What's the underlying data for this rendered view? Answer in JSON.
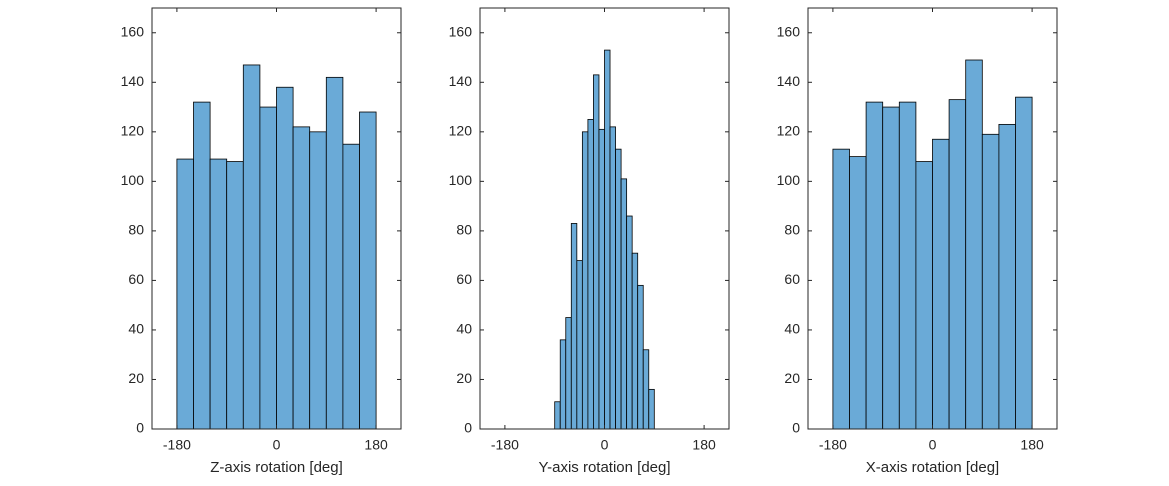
{
  "chart_data": [
    {
      "type": "histogram",
      "xlabel": "Z-axis rotation [deg]",
      "color": "#6aaad7",
      "bins": [
        -180,
        -150,
        -120,
        -90,
        -60,
        -30,
        0,
        30,
        60,
        90,
        120,
        150,
        180
      ],
      "values": [
        109,
        132,
        109,
        108,
        147,
        130,
        138,
        122,
        120,
        142,
        115,
        128
      ],
      "xlim": [
        -225,
        225
      ],
      "ylim": [
        0,
        170
      ],
      "xticks": [
        -180,
        0,
        180
      ],
      "yticks": [
        0,
        20,
        40,
        60,
        80,
        100,
        120,
        140,
        160
      ]
    },
    {
      "type": "histogram",
      "xlabel": "Y-axis rotation [deg]",
      "color": "#6aaad7",
      "bins": [
        -90,
        -80,
        -70,
        -60,
        -50,
        -40,
        -30,
        -20,
        -10,
        0,
        10,
        20,
        30,
        40,
        50,
        60,
        70,
        80,
        90
      ],
      "values": [
        11,
        36,
        45,
        83,
        68,
        120,
        125,
        143,
        121,
        153,
        122,
        113,
        101,
        86,
        71,
        58,
        32,
        16
      ],
      "xlim": [
        -225,
        225
      ],
      "ylim": [
        0,
        170
      ],
      "xticks": [
        -180,
        0,
        180
      ],
      "yticks": [
        0,
        20,
        40,
        60,
        80,
        100,
        120,
        140,
        160
      ]
    },
    {
      "type": "histogram",
      "xlabel": "X-axis rotation [deg]",
      "color": "#6aaad7",
      "bins": [
        -180,
        -150,
        -120,
        -90,
        -60,
        -30,
        0,
        30,
        60,
        90,
        120,
        150,
        180
      ],
      "values": [
        113,
        110,
        132,
        130,
        132,
        108,
        117,
        133,
        149,
        119,
        123,
        134
      ],
      "xlim": [
        -225,
        225
      ],
      "ylim": [
        0,
        170
      ],
      "xticks": [
        -180,
        0,
        180
      ],
      "yticks": [
        0,
        20,
        40,
        60,
        80,
        100,
        120,
        140,
        160
      ]
    }
  ]
}
